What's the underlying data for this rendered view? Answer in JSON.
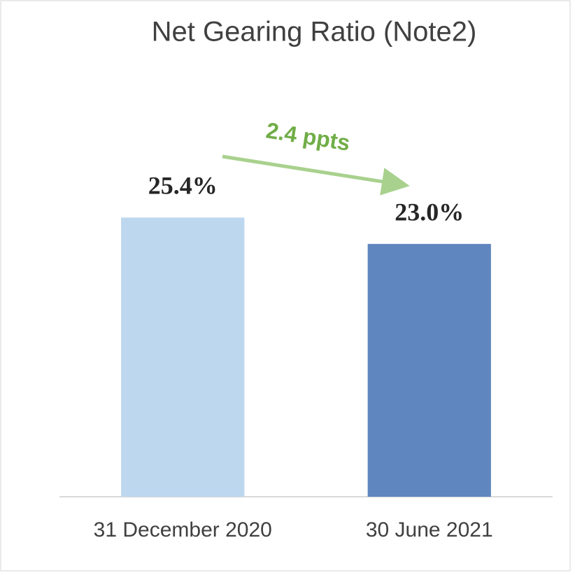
{
  "chart_data": {
    "type": "bar",
    "title": "Net Gearing Ratio (Note2)",
    "categories": [
      "31 December 2020",
      "30 June 2021"
    ],
    "values": [
      25.4,
      23.0
    ],
    "value_labels": [
      "25.4%",
      "23.0%"
    ],
    "colors": [
      "#bdd7ee",
      "#6086c0"
    ],
    "ylim": [
      0,
      30
    ],
    "annotation": "2.4 ppts"
  }
}
